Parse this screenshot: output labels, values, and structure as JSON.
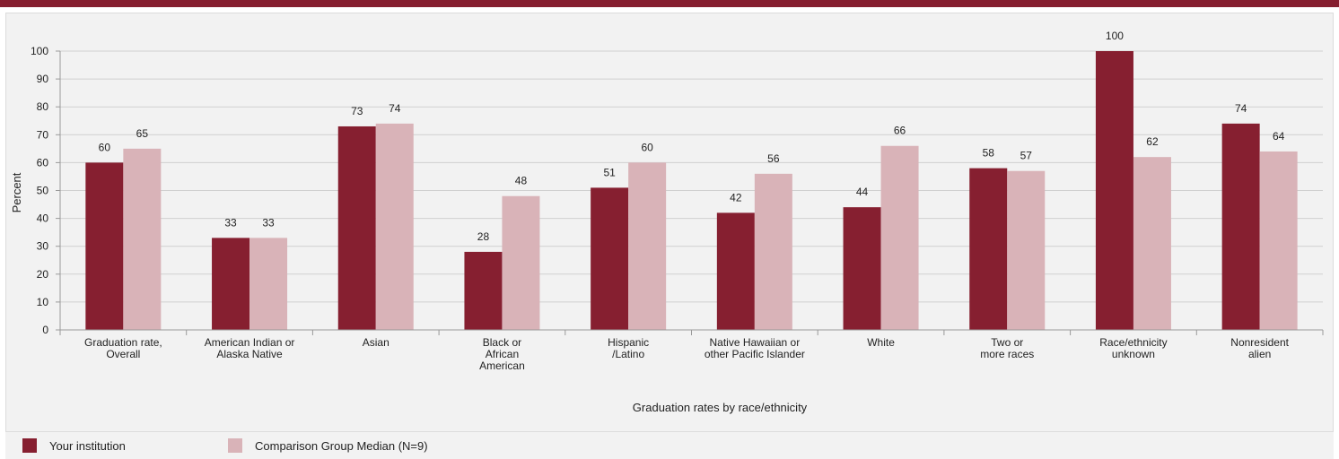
{
  "colors": {
    "accent": "#861f30",
    "series1": "#861f30",
    "series2": "#d9b3b8"
  },
  "chart_data": {
    "type": "bar",
    "title": "",
    "xlabel": "Graduation rates by race/ethnicity",
    "ylabel": "Percent",
    "ylim": [
      0,
      100
    ],
    "yticks": [
      0,
      10,
      20,
      30,
      40,
      50,
      60,
      70,
      80,
      90,
      100
    ],
    "grid": true,
    "legend_position": "bottom-left",
    "categories": [
      [
        "Graduation rate,",
        "Overall"
      ],
      [
        "American Indian or",
        "Alaska Native"
      ],
      [
        "Asian"
      ],
      [
        "Black or",
        "African",
        "American"
      ],
      [
        "Hispanic",
        "/Latino"
      ],
      [
        "Native Hawaiian or",
        "other Pacific Islander"
      ],
      [
        "White"
      ],
      [
        "Two or",
        "more races"
      ],
      [
        "Race/ethnicity",
        "unknown"
      ],
      [
        "Nonresident",
        "alien"
      ]
    ],
    "series": [
      {
        "name": "Your institution",
        "color": "#861f30",
        "values": [
          60,
          33,
          73,
          28,
          51,
          42,
          44,
          58,
          100,
          74
        ]
      },
      {
        "name": "Comparison Group Median (N=9)",
        "color": "#d9b3b8",
        "values": [
          65,
          33,
          74,
          48,
          60,
          56,
          66,
          57,
          62,
          64
        ]
      }
    ]
  }
}
